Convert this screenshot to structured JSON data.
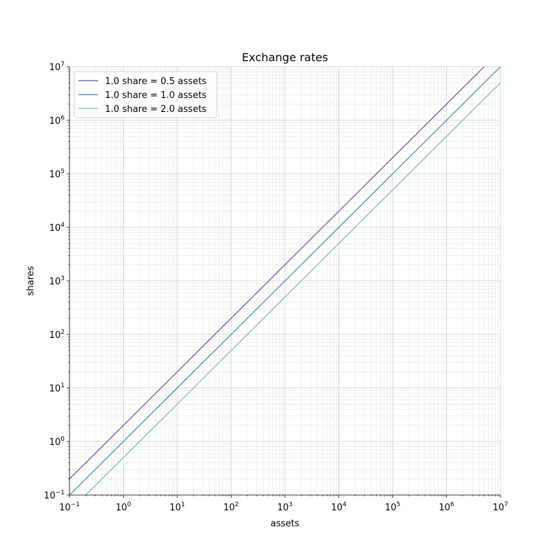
{
  "chart_data": {
    "type": "line",
    "title": "Exchange rates",
    "xlabel": "assets",
    "ylabel": "shares",
    "xscale": "log",
    "yscale": "log",
    "xlim": [
      0.1,
      10000000
    ],
    "ylim": [
      0.1,
      10000000
    ],
    "grid": "major and minor",
    "legend_position": "top-left",
    "tick_labels": {
      "base": "10",
      "exponents": [
        "−1",
        "0",
        "1",
        "2",
        "3",
        "4",
        "5",
        "6",
        "7"
      ]
    },
    "series": [
      {
        "name": "1.0 share = 0.5 assets",
        "color": "#5e4fa2",
        "x": [
          0.1,
          5000000
        ],
        "y": [
          0.2,
          10000000
        ]
      },
      {
        "name": "1.0 share = 1.0 assets",
        "color": "#3288bd",
        "x": [
          0.1,
          10000000
        ],
        "y": [
          0.1,
          10000000
        ]
      },
      {
        "name": "1.0 share = 2.0 assets",
        "color": "#66c2a5",
        "x": [
          0.2,
          10000000
        ],
        "y": [
          0.1,
          5000000
        ]
      }
    ]
  }
}
